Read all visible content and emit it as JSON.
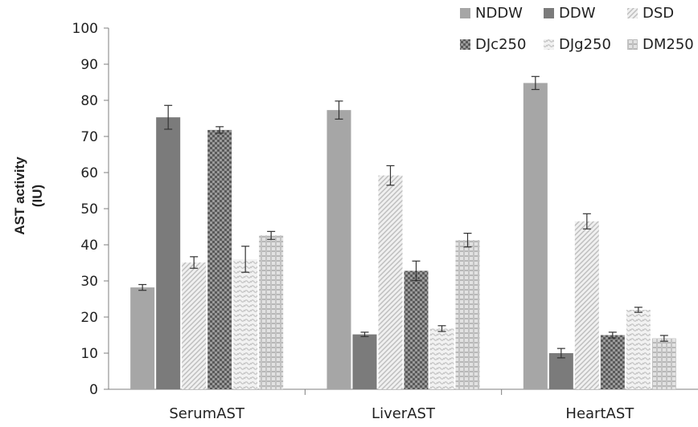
{
  "chart_data": {
    "type": "bar",
    "title": "",
    "ylabel": "AST activity",
    "ylabel_unit": "(IU)",
    "xlabel": "",
    "ylim": [
      0,
      100
    ],
    "yticks": [
      0,
      10,
      20,
      30,
      40,
      50,
      60,
      70,
      80,
      90,
      100
    ],
    "categories": [
      "SerumAST",
      "LiverAST",
      "HeartAST"
    ],
    "legend_position": "top-right",
    "grid": false,
    "series": [
      {
        "name": "NDDW",
        "values": [
          28.2,
          77.3,
          84.8
        ],
        "errors": [
          0.8,
          2.5,
          1.8
        ],
        "color": "#a6a6a6",
        "pattern": "solid"
      },
      {
        "name": "DDW",
        "values": [
          75.3,
          15.2,
          10.0
        ],
        "errors": [
          3.3,
          0.6,
          1.3
        ],
        "color": "#7b7b7b",
        "pattern": "solid"
      },
      {
        "name": "DSD",
        "values": [
          35.1,
          59.2,
          46.5
        ],
        "errors": [
          1.6,
          2.7,
          2.1
        ],
        "color": "#d9d9d9",
        "pattern": "diagonal"
      },
      {
        "name": "DJc250",
        "values": [
          71.8,
          32.8,
          15.0
        ],
        "errors": [
          0.9,
          2.7,
          0.8
        ],
        "color": "#8c8c8c",
        "pattern": "checker"
      },
      {
        "name": "DJg250",
        "values": [
          36.0,
          16.8,
          22.0
        ],
        "errors": [
          3.6,
          0.8,
          0.7
        ],
        "color": "#e6e6e6",
        "pattern": "wave"
      },
      {
        "name": "DM250",
        "values": [
          42.6,
          41.3,
          14.1
        ],
        "errors": [
          1.1,
          1.9,
          0.8
        ],
        "color": "#cfcfcf",
        "pattern": "plaid"
      }
    ]
  }
}
